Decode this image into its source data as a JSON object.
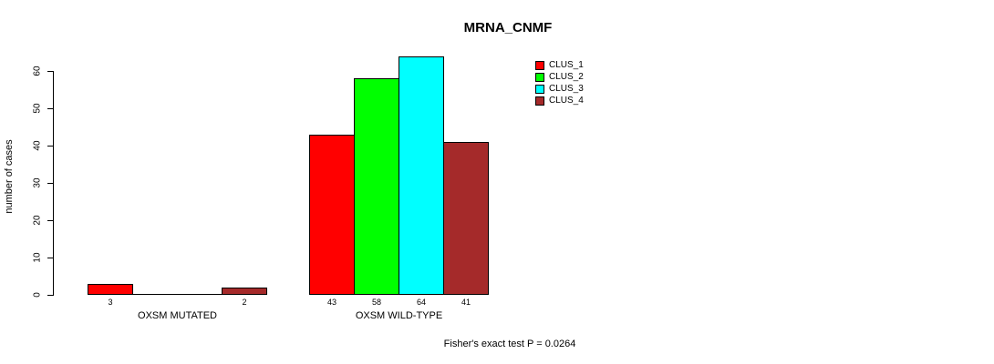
{
  "chart_data": {
    "type": "bar",
    "title": "MRNA_CNMF",
    "ylabel": "number of cases",
    "ylim": [
      0,
      60
    ],
    "yticks": [
      0,
      10,
      20,
      30,
      40,
      50,
      60
    ],
    "grid": false,
    "legend_position": "top-right",
    "categories": [
      "OXSM MUTATED",
      "OXSM WILD-TYPE"
    ],
    "series": [
      {
        "name": "CLUS_1",
        "color": "#ff0000",
        "values": [
          3,
          43
        ]
      },
      {
        "name": "CLUS_2",
        "color": "#00ff00",
        "values": [
          0,
          58
        ]
      },
      {
        "name": "CLUS_3",
        "color": "#00ffff",
        "values": [
          0,
          64
        ]
      },
      {
        "name": "CLUS_4",
        "color": "#a52a2a",
        "values": [
          2,
          41
        ]
      }
    ],
    "bar_value_labels": [
      [
        "3",
        "",
        "",
        "2"
      ],
      [
        "43",
        "58",
        "64",
        "41"
      ]
    ],
    "annotation": "Fisher's exact test P = 0.0264",
    "axis_color": "#000000",
    "background_color": "#ffffff"
  }
}
